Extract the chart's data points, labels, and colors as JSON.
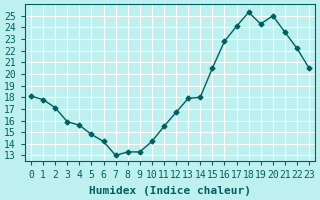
{
  "x": [
    0,
    1,
    2,
    3,
    4,
    5,
    6,
    7,
    8,
    9,
    10,
    11,
    12,
    13,
    14,
    15,
    16,
    17,
    18,
    19,
    20,
    21,
    22,
    23
  ],
  "y": [
    18.1,
    17.8,
    17.1,
    15.9,
    15.6,
    14.8,
    14.2,
    13.0,
    13.3,
    13.3,
    14.2,
    15.5,
    16.7,
    17.9,
    18.0,
    20.5,
    22.8,
    24.1,
    25.3,
    24.3,
    25.0,
    23.6,
    22.2,
    20.5
  ],
  "xlabel": "Humidex (Indice chaleur)",
  "xlim": [
    -0.5,
    23.5
  ],
  "ylim": [
    12.5,
    26.0
  ],
  "yticks": [
    13,
    14,
    15,
    16,
    17,
    18,
    19,
    20,
    21,
    22,
    23,
    24,
    25
  ],
  "xticks": [
    0,
    1,
    2,
    3,
    4,
    5,
    6,
    7,
    8,
    9,
    10,
    11,
    12,
    13,
    14,
    15,
    16,
    17,
    18,
    19,
    20,
    21,
    22,
    23
  ],
  "xtick_labels": [
    "0",
    "1",
    "2",
    "3",
    "4",
    "5",
    "6",
    "7",
    "8",
    "9",
    "10",
    "11",
    "12",
    "13",
    "14",
    "15",
    "16",
    "17",
    "18",
    "19",
    "20",
    "21",
    "22",
    "23"
  ],
  "line_color": "#006060",
  "marker": "D",
  "marker_size": 2.5,
  "bg_color": "#bef0f0",
  "grid_color": "#ffffff",
  "tick_color": "#006060",
  "label_color": "#006060",
  "xlabel_fontsize": 8,
  "tick_fontsize": 7
}
